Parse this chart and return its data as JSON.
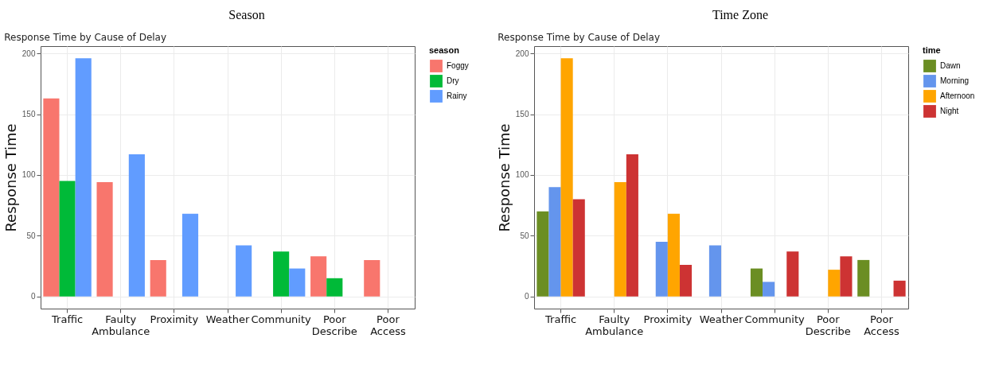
{
  "chart_data": [
    {
      "type": "bar",
      "title": "Season",
      "subtitle": "Response Time by Cause of Delay",
      "ylabel": "Response Time",
      "legend_title": "season",
      "categories": [
        "Traffic",
        "Faulty Ambulance",
        "Proximity",
        "Weather",
        "Community",
        "Poor Describe",
        "Poor Access"
      ],
      "series": [
        {
          "name": "Foggy",
          "color": "#f8766d",
          "values": [
            163,
            94,
            30,
            null,
            null,
            33,
            30
          ]
        },
        {
          "name": "Dry",
          "color": "#00ba38",
          "values": [
            95,
            null,
            null,
            null,
            37,
            15,
            null
          ]
        },
        {
          "name": "Rainy",
          "color": "#619cff",
          "values": [
            196,
            117,
            68,
            42,
            23,
            null,
            null
          ]
        }
      ],
      "ylim": [
        -10,
        206
      ],
      "yticks": [
        0,
        50,
        100,
        150,
        200
      ],
      "grid": true,
      "legend": "right"
    },
    {
      "type": "bar",
      "title": "Time Zone",
      "subtitle": "Response Time by Cause of Delay",
      "ylabel": "Response Time",
      "legend_title": "time",
      "categories": [
        "Traffic",
        "Faulty Ambulance",
        "Proximity",
        "Weather",
        "Community",
        "Poor Describe",
        "Poor Access"
      ],
      "series": [
        {
          "name": "Dawn",
          "color": "#6b8e23",
          "values": [
            70,
            null,
            null,
            null,
            23,
            null,
            30
          ]
        },
        {
          "name": "Morning",
          "color": "#6495ed",
          "values": [
            90,
            null,
            45,
            42,
            12,
            null,
            null
          ]
        },
        {
          "name": "Afternoon",
          "color": "#ffa500",
          "values": [
            196,
            94,
            68,
            null,
            null,
            22,
            null
          ]
        },
        {
          "name": "Night",
          "color": "#cd3333",
          "values": [
            80,
            117,
            26,
            null,
            37,
            33,
            13
          ]
        }
      ],
      "ylim": [
        -10,
        206
      ],
      "yticks": [
        0,
        50,
        100,
        150,
        200
      ],
      "grid": true,
      "legend": "right"
    }
  ]
}
